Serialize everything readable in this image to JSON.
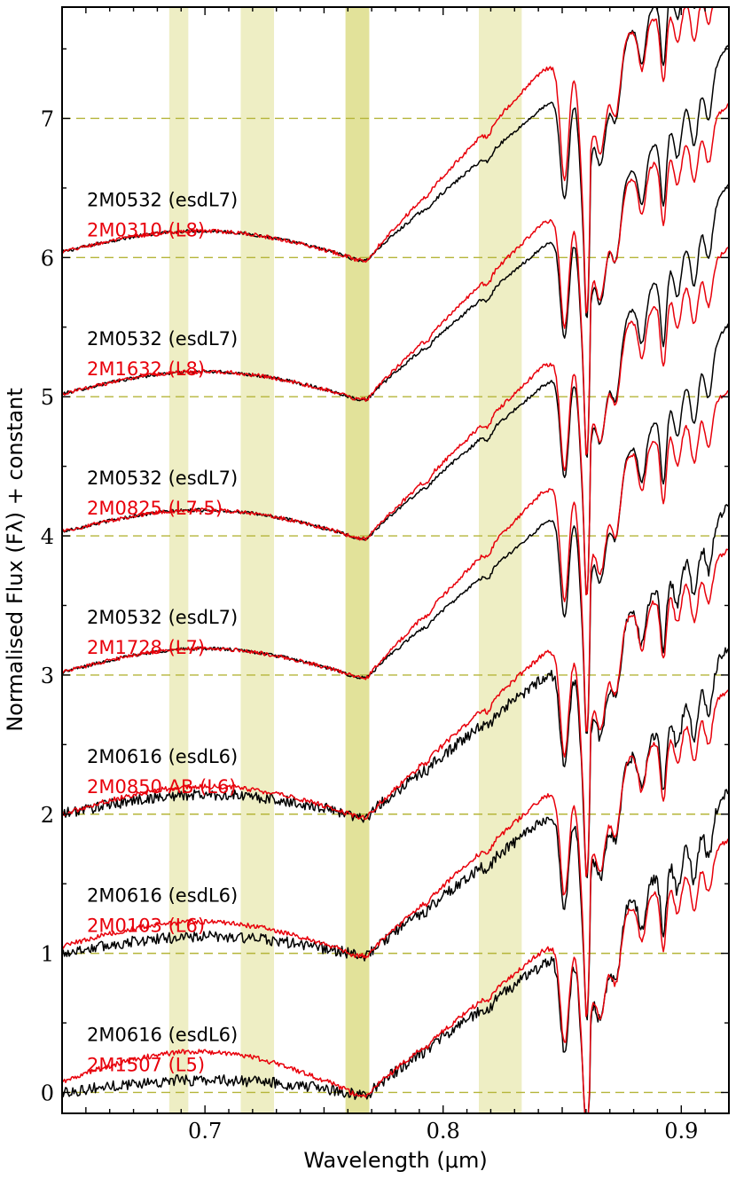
{
  "chart_data": {
    "type": "line",
    "title": "",
    "xlabel": "Wavelength (μm)",
    "ylabel": "Normalised Flux (Fλ) + constant",
    "xlim": [
      0.64,
      0.92
    ],
    "ylim": [
      -0.15,
      7.8
    ],
    "xticks": [
      0.7,
      0.8,
      0.9
    ],
    "xtick_labels": [
      "0.7",
      "0.8",
      "0.9"
    ],
    "yticks": [
      0,
      1,
      2,
      3,
      4,
      5,
      6,
      7
    ],
    "ytick_labels": [
      "0",
      "1",
      "2",
      "3",
      "4",
      "5",
      "6",
      "7"
    ],
    "shaded_bands": [
      {
        "x0": 0.685,
        "x1": 0.693,
        "color": "#eeeec4"
      },
      {
        "x0": 0.715,
        "x1": 0.729,
        "color": "#eeeec4"
      },
      {
        "x0": 0.759,
        "x1": 0.769,
        "color": "#e2e29a"
      },
      {
        "x0": 0.815,
        "x1": 0.833,
        "color": "#eeeec4"
      }
    ],
    "colors": {
      "black": "#000000",
      "red": "#e8000b",
      "baseline": "#b5b53a"
    },
    "pairs": [
      {
        "offset": 6,
        "black_label": "2M0532 (esdL7)",
        "red_label": "2M0310 (L8)",
        "black": {
          "start": 1.04,
          "hump": 0.17,
          "r_end": 1.08,
          "a": 0.6,
          "k": 0.85,
          "noise": 0.012
        },
        "red": {
          "start": 1.04,
          "hump": 0.17,
          "r_end": 1.35,
          "a": 0.3,
          "k": 0.42,
          "noise": 0.014
        }
      },
      {
        "offset": 5,
        "black_label": "2M0532 (esdL7)",
        "red_label": "2M1632 (L8)",
        "black": {
          "start": 1.02,
          "hump": 0.17,
          "r_end": 1.08,
          "a": 0.6,
          "k": 0.85,
          "noise": 0.012
        },
        "red": {
          "start": 1.02,
          "hump": 0.17,
          "r_end": 1.25,
          "a": 0.35,
          "k": 0.5,
          "noise": 0.014
        }
      },
      {
        "offset": 4,
        "black_label": "2M0532 (esdL7)",
        "red_label": "2M0825 (L7.5)",
        "black": {
          "start": 1.03,
          "hump": 0.17,
          "r_end": 1.08,
          "a": 0.6,
          "k": 0.85,
          "noise": 0.012
        },
        "red": {
          "start": 1.03,
          "hump": 0.17,
          "r_end": 1.22,
          "a": 0.35,
          "k": 0.5,
          "noise": 0.014
        }
      },
      {
        "offset": 3,
        "black_label": "2M0532 (esdL7)",
        "red_label": "2M1728 (L7)",
        "black": {
          "start": 1.02,
          "hump": 0.18,
          "r_end": 1.08,
          "a": 0.6,
          "k": 0.85,
          "noise": 0.012
        },
        "red": {
          "start": 1.02,
          "hump": 0.18,
          "r_end": 1.32,
          "a": 0.3,
          "k": 0.42,
          "noise": 0.014
        }
      },
      {
        "offset": 2,
        "black_label": "2M0616 (esdL6)",
        "red_label": "2M0850 AB (L6)",
        "black": {
          "start": 1.0,
          "hump": 0.14,
          "r_end": 0.98,
          "a": 0.45,
          "k": 0.8,
          "noise": 0.04
        },
        "red": {
          "start": 1.0,
          "hump": 0.2,
          "r_end": 1.15,
          "a": 0.3,
          "k": 0.45,
          "noise": 0.018
        }
      },
      {
        "offset": 1,
        "black_label": "2M0616 (esdL6)",
        "red_label": "2M0103 (L6)",
        "black": {
          "start": 1.0,
          "hump": 0.12,
          "r_end": 0.95,
          "a": 0.45,
          "k": 0.8,
          "noise": 0.04
        },
        "red": {
          "start": 1.05,
          "hump": 0.2,
          "r_end": 1.12,
          "a": 0.32,
          "k": 0.45,
          "noise": 0.018
        }
      },
      {
        "offset": 0,
        "black_label": "2M0616 (esdL6)",
        "red_label": "2M1507 (L5)",
        "black": {
          "start": 1.0,
          "hump": 0.09,
          "r_end": 0.92,
          "a": 0.45,
          "k": 0.8,
          "noise": 0.04
        },
        "red": {
          "start": 1.08,
          "hump": 0.25,
          "r_end": 1.02,
          "a": 0.35,
          "k": 0.45,
          "noise": 0.018
        }
      }
    ]
  }
}
